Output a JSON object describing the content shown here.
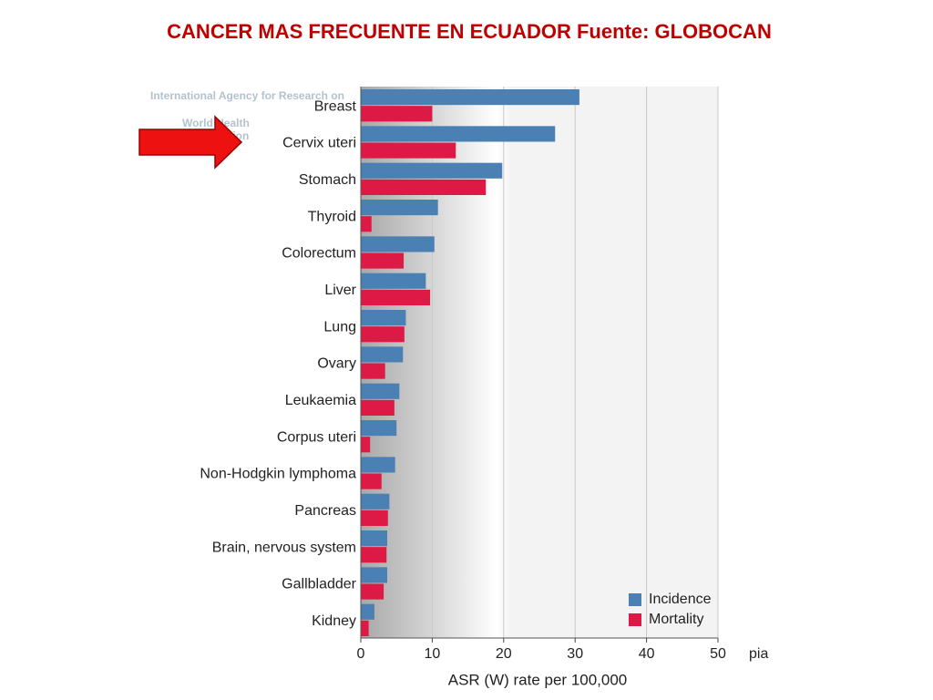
{
  "chart_data": {
    "type": "barh",
    "title": "CANCER MAS FRECUENTE EN ECUADOR  Fuente: GLOBOCAN",
    "xlabel": "ASR (W) rate per 100,000",
    "logo_text": [
      "International Agency for Research on",
      "World Health",
      "Organization"
    ],
    "annotation": "pia",
    "categories": [
      "Breast",
      "Cervix uteri",
      "Stomach",
      "Thyroid",
      "Colorectum",
      "Liver",
      "Lung",
      "Ovary",
      "Leukaemia",
      "Corpus uteri",
      "Non-Hodgkin lymphoma",
      "Pancreas",
      "Brain, nervous system",
      "Gallbladder",
      "Kidney"
    ],
    "series": [
      {
        "name": "Incidence",
        "color": "#4a80b4",
        "values": [
          30.6,
          27.2,
          19.8,
          10.8,
          10.3,
          9.1,
          6.3,
          5.9,
          5.4,
          5.0,
          4.8,
          4.0,
          3.7,
          3.7,
          1.9
        ]
      },
      {
        "name": "Mortality",
        "color": "#dc1a45",
        "values": [
          10.0,
          13.3,
          17.5,
          1.5,
          6.0,
          9.7,
          6.1,
          3.4,
          4.7,
          1.3,
          2.9,
          3.8,
          3.6,
          3.2,
          1.1
        ]
      }
    ],
    "xlim": [
      0,
      50
    ],
    "xticks": [
      0,
      10,
      20,
      30,
      40,
      50
    ],
    "grid": true,
    "legend": "lower right"
  }
}
